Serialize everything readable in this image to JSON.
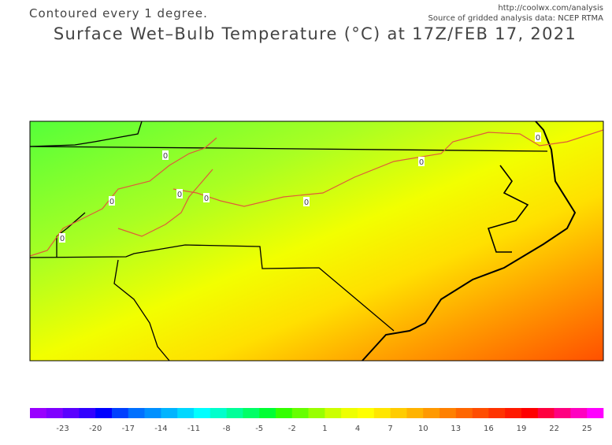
{
  "header": {
    "contour_note": "Contoured every 1 degree.",
    "url": "http://coolwx.com/analysis",
    "source": "Source of gridded analysis data:  NCEP RTMA",
    "title": "Surface Wet–Bulb Temperature (°C) at 17Z/FEB 17, 2021"
  },
  "map": {
    "contour_labels": [
      "0",
      "0",
      "0",
      "0",
      "0",
      "0",
      "0",
      "0"
    ],
    "contour_color": "#e05a3a"
  },
  "colorbar": {
    "labels": [
      -23,
      -20,
      -17,
      -14,
      -11,
      -8,
      -5,
      -2,
      1,
      4,
      7,
      10,
      13,
      16,
      19,
      22,
      25
    ],
    "colors": [
      "#9900ff",
      "#7f00ff",
      "#5a00ff",
      "#3200ff",
      "#0000ff",
      "#0040ff",
      "#0070ff",
      "#0090ff",
      "#00b4ff",
      "#00d8ff",
      "#00ffff",
      "#00ffcc",
      "#00ff99",
      "#00ff66",
      "#00ff33",
      "#33ff00",
      "#66ff00",
      "#99ff00",
      "#ccff00",
      "#eeff00",
      "#ffff00",
      "#ffe600",
      "#ffcc00",
      "#ffb300",
      "#ff9900",
      "#ff8000",
      "#ff6600",
      "#ff4d00",
      "#ff3300",
      "#ff1a00",
      "#ff0000",
      "#ff0040",
      "#ff0080",
      "#ff00c0",
      "#ff00ff"
    ]
  }
}
